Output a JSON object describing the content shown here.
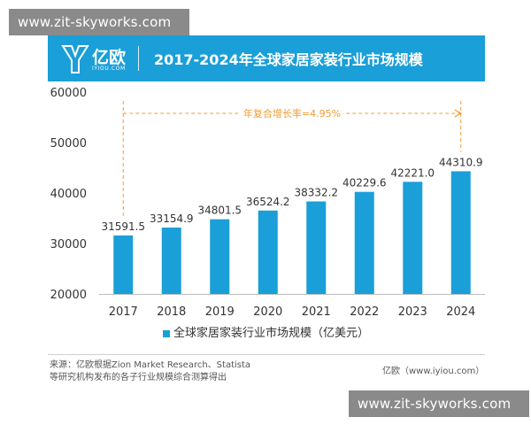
{
  "watermarks": [
    "www.zit-skyworks.com",
    "www.zit-skyworks.com"
  ],
  "header": {
    "logo_name": "亿欧",
    "logo_sub": "IYIOU.COM",
    "title": "2017-2024年全球家居家装行业市场规模"
  },
  "chart_data": {
    "type": "bar",
    "title": "2017-2024年全球家居家装行业市场规模",
    "categories": [
      "2017",
      "2018",
      "2019",
      "2020",
      "2021",
      "2022",
      "2023",
      "2024"
    ],
    "series": [
      {
        "name": "全球家居家装行业市场规模（亿美元）",
        "values": [
          31591.5,
          33154.9,
          34801.5,
          36524.2,
          38332.2,
          40229.6,
          42221.0,
          44310.9
        ],
        "labels": [
          "31591.5",
          "33154.9",
          "34801.5",
          "36524.2",
          "38332.2",
          "40229.6",
          "42221.0",
          "44310.9"
        ]
      }
    ],
    "ylim": [
      20000,
      60000
    ],
    "yticks": [
      "20000",
      "30000",
      "40000",
      "50000",
      "60000"
    ],
    "grid": false,
    "legend_position": "bottom",
    "annotation": "年复合增长率=4.95%",
    "bar_color": "#1a9fd8",
    "annotation_color": "#f39c33"
  },
  "legend": {
    "label": "全球家居家装行业市场规模（亿美元）"
  },
  "footer": {
    "source_line1": "来源：亿欧根据Zion Market Research、Statista",
    "source_line2": "等研究机构发布的各子行业规模综合测算得出",
    "brand": "亿欧（www.iyiou.com）"
  }
}
